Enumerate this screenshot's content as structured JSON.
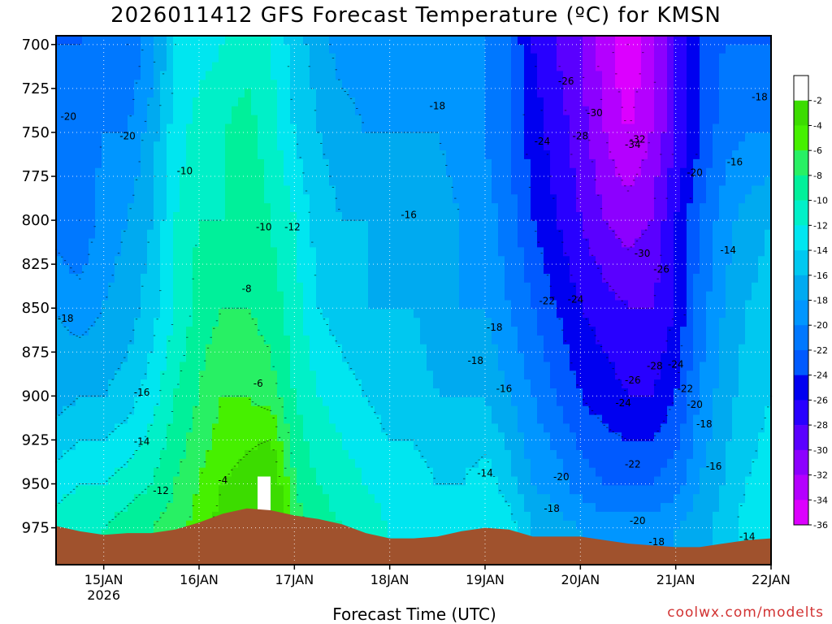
{
  "title": "2026011412 GFS Forecast Temperature (ºC) for KMSN",
  "xlabel": "Forecast Time (UTC)",
  "credit": "coolwx.com/modelts",
  "chart_data": {
    "type": "heatmap",
    "title": "2026011412 GFS Forecast Temperature (ºC) for KMSN",
    "xlabel": "Forecast Time (UTC)",
    "ylabel": "",
    "x_ticks": [
      {
        "label": "15JAN",
        "sub": "2026",
        "day": 15
      },
      {
        "label": "16JAN",
        "sub": "",
        "day": 16
      },
      {
        "label": "17JAN",
        "sub": "",
        "day": 17
      },
      {
        "label": "18JAN",
        "sub": "",
        "day": 18
      },
      {
        "label": "19JAN",
        "sub": "",
        "day": 19
      },
      {
        "label": "20JAN",
        "sub": "",
        "day": 20
      },
      {
        "label": "21JAN",
        "sub": "",
        "day": 21
      },
      {
        "label": "22JAN",
        "sub": "",
        "day": 22
      }
    ],
    "x_range_days": [
      14.5,
      22.0
    ],
    "y_ticks": [
      700,
      725,
      750,
      775,
      800,
      825,
      850,
      875,
      900,
      925,
      950,
      975
    ],
    "y_range_hpa": [
      695,
      996
    ],
    "colorbar_levels": [
      -2,
      -4,
      -6,
      -8,
      -10,
      -12,
      -14,
      -16,
      -18,
      -20,
      -22,
      -24,
      -26,
      -28,
      -30,
      -32,
      -34,
      -36
    ],
    "colorbar_colors": [
      "#ffffff",
      "#3cdc00",
      "#46f000",
      "#28f064",
      "#00f09a",
      "#00f0c8",
      "#00e6f0",
      "#00c8f0",
      "#00aaf0",
      "#0096ff",
      "#0078ff",
      "#005aff",
      "#0000f0",
      "#2800ff",
      "#5a00ff",
      "#8c00ff",
      "#b400ff",
      "#dc00ff"
    ],
    "terrain_color": "#a0522d",
    "grid": true,
    "legend": "right colorbar",
    "columns_time_days": [
      14.5,
      14.75,
      15.0,
      15.25,
      15.5,
      15.75,
      16.0,
      16.25,
      16.5,
      16.75,
      17.0,
      17.25,
      17.5,
      17.75,
      18.0,
      18.25,
      18.5,
      18.75,
      19.0,
      19.25,
      19.5,
      19.75,
      20.0,
      20.25,
      20.5,
      20.75,
      21.0,
      21.25,
      21.5,
      21.75,
      22.0
    ],
    "temperature_profiles": [
      {
        "level": 700,
        "temps": [
          -22,
          -22,
          -21,
          -22,
          -19,
          -14,
          -13,
          -12,
          -11,
          -12,
          -15,
          -17,
          -19,
          -19,
          -19,
          -19,
          -19,
          -19,
          -20,
          -22,
          -26,
          -28,
          -30,
          -33,
          -36,
          -33,
          -28,
          -24,
          -22,
          -22,
          -22
        ]
      },
      {
        "level": 750,
        "temps": [
          -21,
          -21,
          -20,
          -20,
          -17,
          -13,
          -11,
          -10,
          -9,
          -11,
          -14,
          -16,
          -17,
          -18,
          -18,
          -18,
          -18,
          -19,
          -20,
          -22,
          -25,
          -27,
          -29,
          -32,
          -34,
          -32,
          -28,
          -24,
          -21,
          -20,
          -20
        ]
      },
      {
        "level": 800,
        "temps": [
          -21,
          -22,
          -19,
          -18,
          -16,
          -12,
          -10,
          -10,
          -9,
          -10,
          -12,
          -15,
          -16,
          -16,
          -16,
          -17,
          -17,
          -18,
          -19,
          -21,
          -24,
          -26,
          -28,
          -30,
          -31,
          -30,
          -26,
          -22,
          -19,
          -17,
          -16
        ]
      },
      {
        "level": 850,
        "temps": [
          -18,
          -19,
          -18,
          -17,
          -15,
          -12,
          -9,
          -8,
          -8,
          -9,
          -11,
          -14,
          -15,
          -16,
          -16,
          -16,
          -17,
          -18,
          -18,
          -20,
          -22,
          -24,
          -26,
          -27,
          -28,
          -28,
          -26,
          -21,
          -18,
          -16,
          -15
        ]
      },
      {
        "level": 900,
        "temps": [
          -17,
          -16,
          -16,
          -15,
          -13,
          -10,
          -8,
          -6,
          -6,
          -7,
          -10,
          -12,
          -13,
          -14,
          -15,
          -15,
          -16,
          -16,
          -16,
          -18,
          -20,
          -22,
          -24,
          -25,
          -26,
          -26,
          -24,
          -20,
          -17,
          -15,
          -14
        ]
      },
      {
        "level": 950,
        "temps": [
          -13,
          -12,
          -12,
          -11,
          -10,
          -8,
          -6,
          -4,
          -3,
          -1,
          -8,
          -10,
          -11,
          -12,
          -13,
          -13,
          -14,
          -14,
          -13,
          -15,
          -18,
          -19,
          -21,
          -22,
          -22,
          -22,
          -21,
          -18,
          -16,
          -14,
          -13
        ]
      },
      {
        "level": 975,
        "temps": [
          -11,
          -10,
          -10,
          -9,
          -8,
          -7,
          -5,
          -3,
          -2,
          -2,
          -7,
          -9,
          -10,
          -11,
          -12,
          -12,
          -12,
          -12,
          -12,
          -13,
          -16,
          -17,
          -18,
          -19,
          -19,
          -19,
          -18,
          -17,
          -15,
          -13,
          -12
        ]
      }
    ],
    "surface_pressure_hpa": [
      974,
      977,
      979,
      978,
      978,
      976,
      972,
      967,
      964,
      965,
      968,
      970,
      973,
      978,
      981,
      981,
      980,
      977,
      975,
      976,
      980,
      980,
      980,
      982,
      984,
      985,
      986,
      986,
      984,
      982,
      981
    ],
    "contour_labels": [
      {
        "text": "-20",
        "day": 14.63,
        "level": 741
      },
      {
        "text": "-20",
        "day": 15.25,
        "level": 752
      },
      {
        "text": "-10",
        "day": 15.85,
        "level": 772
      },
      {
        "text": "-10",
        "day": 16.68,
        "level": 804
      },
      {
        "text": "-12",
        "day": 16.98,
        "level": 804
      },
      {
        "text": "-8",
        "day": 16.5,
        "level": 839
      },
      {
        "text": "-6",
        "day": 16.62,
        "level": 893
      },
      {
        "text": "-4",
        "day": 16.25,
        "level": 948
      },
      {
        "text": "-12",
        "day": 15.6,
        "level": 954
      },
      {
        "text": "-14",
        "day": 15.4,
        "level": 926
      },
      {
        "text": "-16",
        "day": 15.4,
        "level": 898
      },
      {
        "text": "-18",
        "day": 14.6,
        "level": 856
      },
      {
        "text": "-18",
        "day": 18.5,
        "level": 735
      },
      {
        "text": "-16",
        "day": 18.2,
        "level": 797
      },
      {
        "text": "-18",
        "day": 19.1,
        "level": 861
      },
      {
        "text": "-18",
        "day": 18.9,
        "level": 880
      },
      {
        "text": "-16",
        "day": 19.2,
        "level": 896
      },
      {
        "text": "-14",
        "day": 19.0,
        "level": 944
      },
      {
        "text": "-20",
        "day": 19.8,
        "level": 946
      },
      {
        "text": "-18",
        "day": 19.7,
        "level": 964
      },
      {
        "text": "-22",
        "day": 19.65,
        "level": 846
      },
      {
        "text": "-24",
        "day": 19.95,
        "level": 845
      },
      {
        "text": "-24",
        "day": 19.6,
        "level": 755
      },
      {
        "text": "-26",
        "day": 19.85,
        "level": 721
      },
      {
        "text": "-28",
        "day": 20.0,
        "level": 752
      },
      {
        "text": "-30",
        "day": 20.15,
        "level": 739
      },
      {
        "text": "-34",
        "day": 20.55,
        "level": 757
      },
      {
        "text": "-32",
        "day": 20.6,
        "level": 754
      },
      {
        "text": "-30",
        "day": 20.65,
        "level": 819
      },
      {
        "text": "-26",
        "day": 20.85,
        "level": 828
      },
      {
        "text": "-28",
        "day": 20.78,
        "level": 883
      },
      {
        "text": "-24",
        "day": 21.0,
        "level": 882
      },
      {
        "text": "-26",
        "day": 20.55,
        "level": 891
      },
      {
        "text": "-24",
        "day": 20.45,
        "level": 904
      },
      {
        "text": "-22",
        "day": 21.1,
        "level": 896
      },
      {
        "text": "-20",
        "day": 21.2,
        "level": 905
      },
      {
        "text": "-18",
        "day": 21.3,
        "level": 916
      },
      {
        "text": "-22",
        "day": 20.55,
        "level": 939
      },
      {
        "text": "-16",
        "day": 21.4,
        "level": 940
      },
      {
        "text": "-20",
        "day": 20.6,
        "level": 971
      },
      {
        "text": "-18",
        "day": 20.8,
        "level": 983
      },
      {
        "text": "-14",
        "day": 21.75,
        "level": 980
      },
      {
        "text": "-20",
        "day": 21.2,
        "level": 773
      },
      {
        "text": "-16",
        "day": 21.62,
        "level": 767
      },
      {
        "text": "-14",
        "day": 21.55,
        "level": 817
      },
      {
        "text": "-18",
        "day": 21.88,
        "level": 730
      }
    ]
  }
}
